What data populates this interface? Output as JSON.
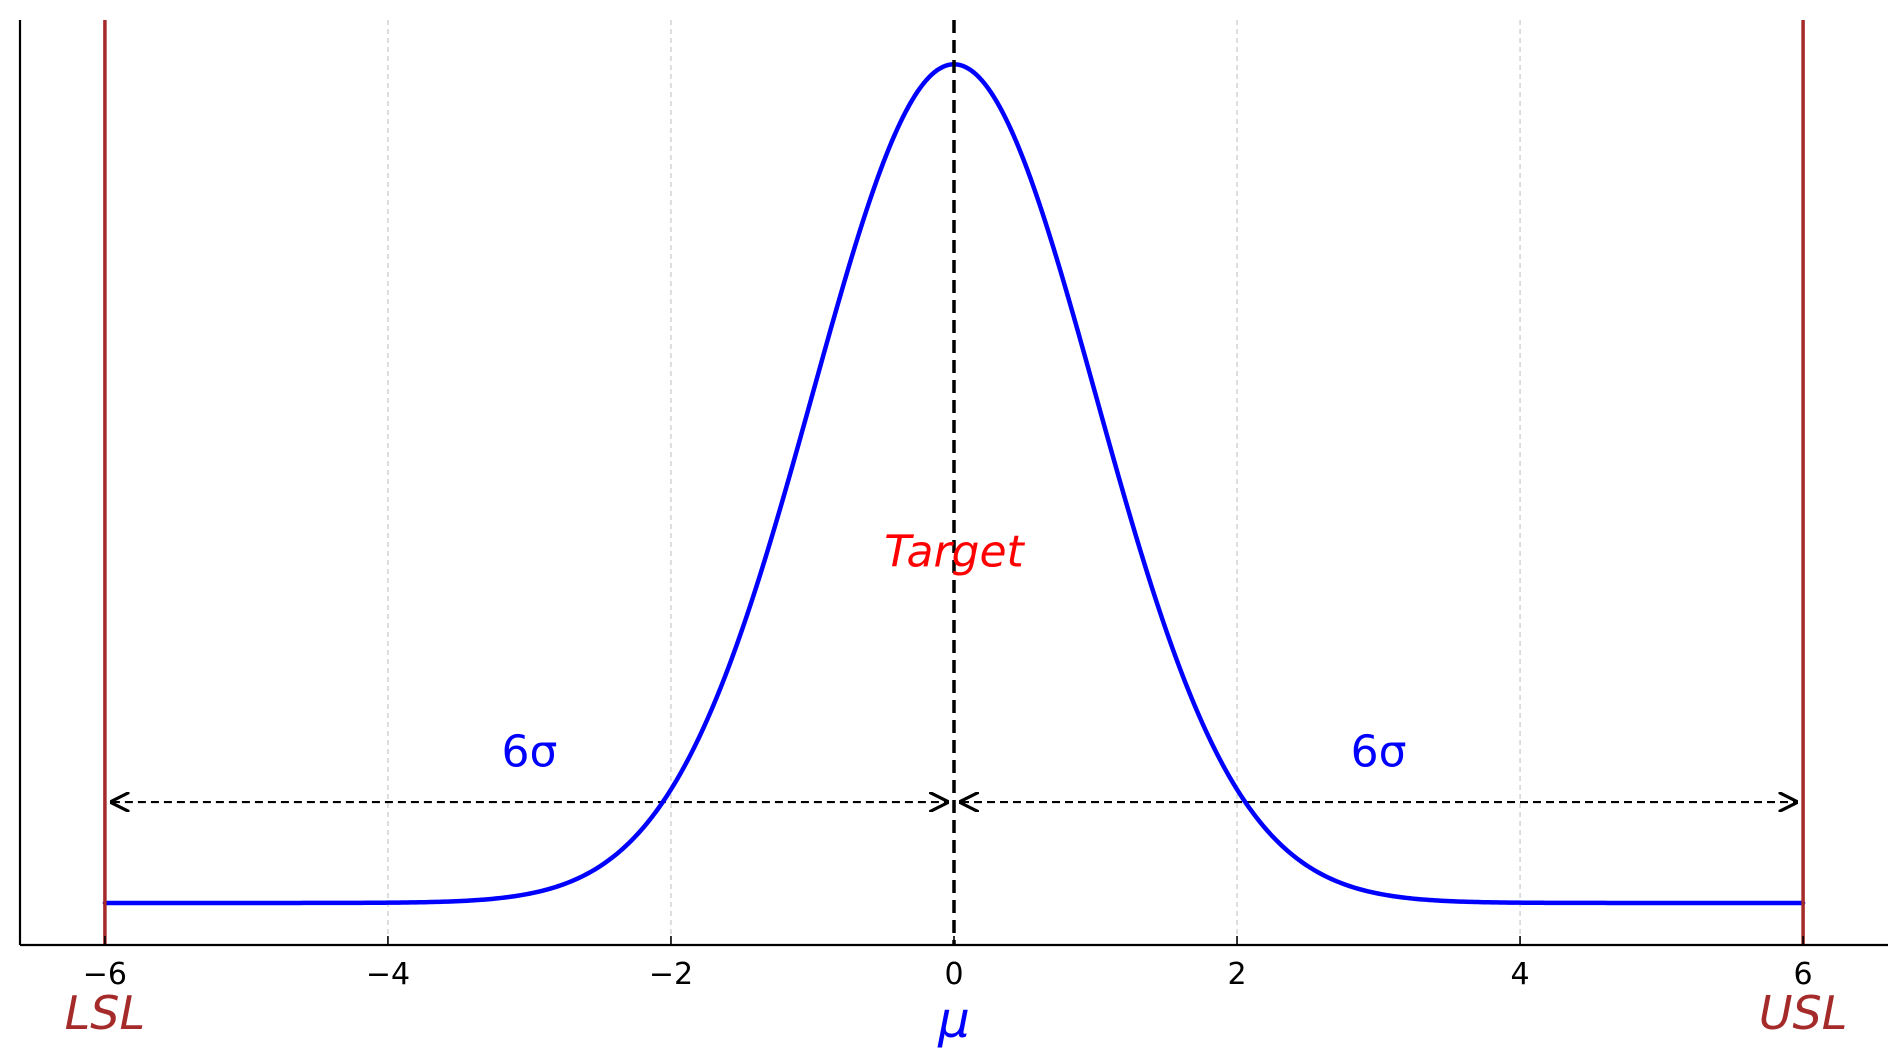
{
  "chart_data": {
    "type": "line",
    "title": "",
    "xlabel": "",
    "ylabel": "",
    "xlim": [
      -6.6,
      6.6
    ],
    "ylim": [
      -0.02,
      0.42
    ],
    "grid": "x-major dashed",
    "legend": "none",
    "x_ticks": [
      -6,
      -4,
      -2,
      0,
      2,
      4,
      6
    ],
    "x_tick_labels": [
      "−6",
      "−4",
      "−2",
      "0",
      "2",
      "4",
      "6"
    ],
    "y_ticks": [],
    "series": [
      {
        "kind": "normal_pdf",
        "mean": 0,
        "std": 1,
        "x_range": [
          -6,
          6
        ],
        "color": "#0000ff"
      }
    ],
    "vertical_lines": [
      {
        "x": -6,
        "color": "#a52a2a",
        "style": "solid"
      },
      {
        "x": 6,
        "color": "#a52a2a",
        "style": "solid"
      },
      {
        "x": 0,
        "color": "#000000",
        "style": "dashed"
      }
    ],
    "spans": [
      {
        "from": -6,
        "to": 0,
        "y": 0.048,
        "label": "6σ",
        "label_x": -3,
        "label_y": 0.065
      },
      {
        "from": 0,
        "to": 6,
        "y": 0.048,
        "label": "6σ",
        "label_x": 3,
        "label_y": 0.065
      }
    ],
    "annotations": [
      {
        "text": "Target",
        "x": 0,
        "y": 0.16,
        "color": "#ff0000"
      }
    ],
    "spec_labels": [
      {
        "text": "LSL",
        "x": -6,
        "color": "#a52a2a"
      },
      {
        "text": "μ",
        "x": 0,
        "color": "#0000ff"
      },
      {
        "text": "USL",
        "x": 6,
        "color": "#a52a2a"
      }
    ]
  }
}
